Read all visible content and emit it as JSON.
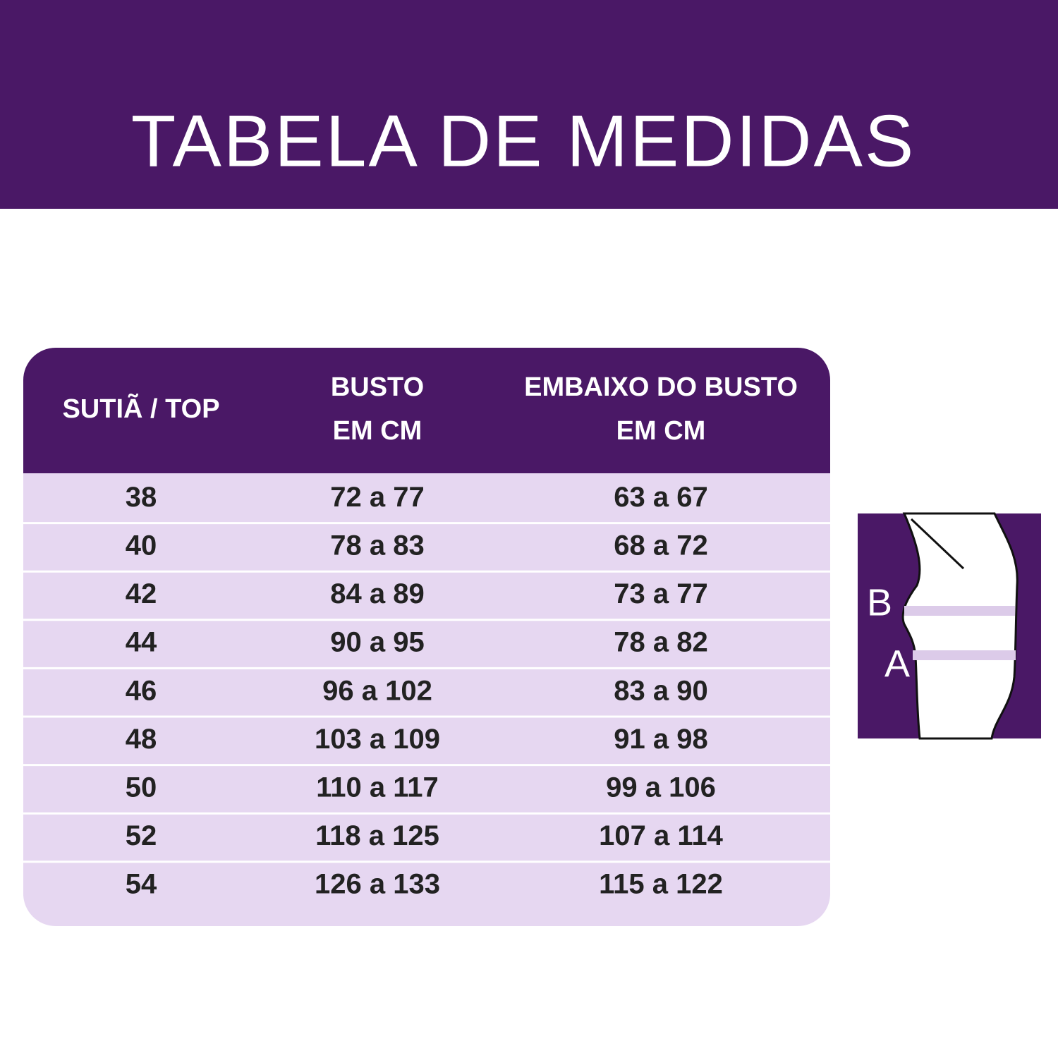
{
  "header": {
    "title": "TABELA DE MEDIDAS"
  },
  "table": {
    "columns": [
      [
        "SUTIÃ / TOP"
      ],
      [
        "BUSTO",
        "EM CM"
      ],
      [
        "EMBAIXO DO BUSTO",
        "EM CM"
      ]
    ],
    "rows": [
      [
        "38",
        "72 a 77",
        "63 a 67"
      ],
      [
        "40",
        "78 a 83",
        "68 a 72"
      ],
      [
        "42",
        "84 a 89",
        "73 a 77"
      ],
      [
        "44",
        "90 a 95",
        "78 a 82"
      ],
      [
        "46",
        "96 a 102",
        "83 a 90"
      ],
      [
        "48",
        "103 a 109",
        "91 a 98"
      ],
      [
        "50",
        "110 a 117",
        "99 a 106"
      ],
      [
        "52",
        "118 a 125",
        "107 a 114"
      ],
      [
        "54",
        "126 a 133",
        "115 a 122"
      ]
    ]
  },
  "figure": {
    "labels": [
      "B",
      "A"
    ]
  }
}
